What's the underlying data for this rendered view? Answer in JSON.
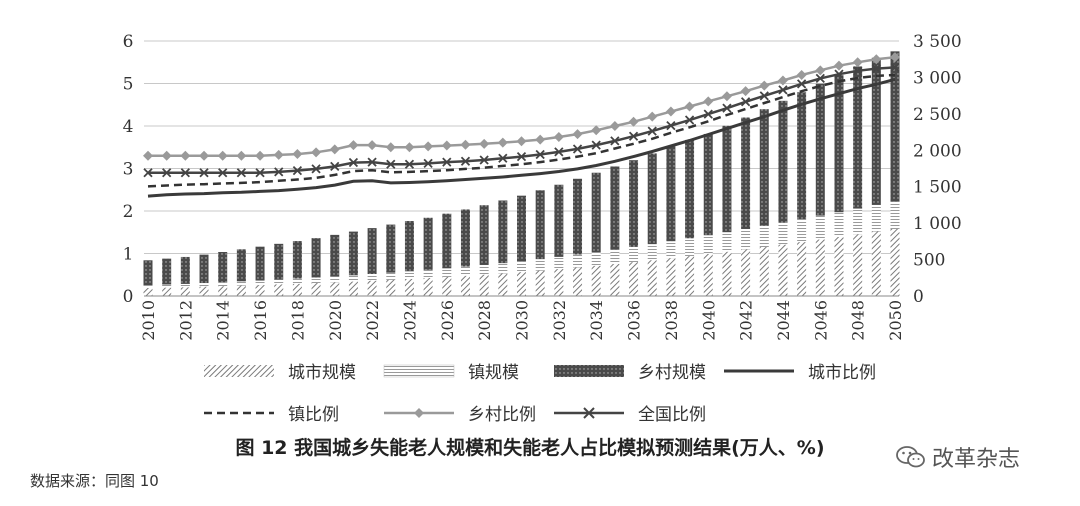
{
  "caption": "图 12  我国城乡失能老人规模和失能老人占比模拟预测结果(万人、%)",
  "source": "数据来源：同图 10",
  "watermark": "改革杂志",
  "colors": {
    "urban_bar": "#8a8a8a",
    "town_bar": "#d8d8d8",
    "rural_bar": "#4a4a4a",
    "urban_line": "#3a3a3a",
    "town_line": "#333333",
    "rural_line": "#9a9a9a",
    "national_line": "#444444"
  },
  "legend": [
    {
      "key": "urban_scale",
      "label": "城市规模"
    },
    {
      "key": "town_scale",
      "label": "镇规模"
    },
    {
      "key": "rural_scale",
      "label": "乡村规模"
    },
    {
      "key": "urban_ratio",
      "label": "城市比例"
    },
    {
      "key": "town_ratio",
      "label": "镇比例"
    },
    {
      "key": "rural_ratio",
      "label": "乡村比例"
    },
    {
      "key": "national_ratio",
      "label": "全国比例"
    }
  ],
  "chart_data": {
    "type": "bar",
    "x": [
      2010,
      2011,
      2012,
      2013,
      2014,
      2015,
      2016,
      2017,
      2018,
      2019,
      2020,
      2021,
      2022,
      2023,
      2024,
      2025,
      2026,
      2027,
      2028,
      2029,
      2030,
      2031,
      2032,
      2033,
      2034,
      2035,
      2036,
      2037,
      2038,
      2039,
      2040,
      2041,
      2042,
      2043,
      2044,
      2045,
      2046,
      2047,
      2048,
      2049,
      2050
    ],
    "x_tick_labels": [
      "2010",
      "2012",
      "2014",
      "2016",
      "2018",
      "2020",
      "2022",
      "2024",
      "2026",
      "2028",
      "2030",
      "2032",
      "2034",
      "2036",
      "2038",
      "2040",
      "2042",
      "2044",
      "2046",
      "2048",
      "2050"
    ],
    "left_axis": {
      "ylim": [
        0,
        6
      ],
      "ticks": [
        "0",
        "1",
        "2",
        "3",
        "4",
        "5",
        "6"
      ]
    },
    "right_axis": {
      "ylim": [
        0,
        3500
      ],
      "ticks": [
        "0",
        "500",
        "1 000",
        "1 500",
        "2 000",
        "2 500",
        "3 000",
        "3 500"
      ]
    },
    "grid": "horizontal",
    "legend_position": "bottom",
    "bar_series": [
      {
        "name": "城市规模",
        "axis": "right",
        "values": [
          110,
          115,
          120,
          128,
          135,
          143,
          150,
          160,
          168,
          178,
          188,
          198,
          210,
          222,
          235,
          248,
          262,
          278,
          293,
          310,
          328,
          348,
          370,
          392,
          415,
          440,
          465,
          492,
          520,
          548,
          578,
          608,
          640,
          672,
          705,
          740,
          775,
          810,
          848,
          885,
          920
        ]
      },
      {
        "name": "镇规模",
        "axis": "right",
        "values": [
          40,
          43,
          46,
          50,
          54,
          58,
          62,
          66,
          71,
          76,
          81,
          86,
          92,
          98,
          104,
          111,
          118,
          125,
          133,
          141,
          149,
          158,
          167,
          177,
          187,
          198,
          209,
          220,
          232,
          244,
          256,
          268,
          280,
          292,
          304,
          316,
          328,
          340,
          352,
          365,
          378
        ]
      },
      {
        "name": "乡村规模",
        "axis": "right",
        "values": [
          340,
          355,
          370,
          390,
          415,
          440,
          465,
          490,
          515,
          540,
          570,
          600,
          630,
          660,
          690,
          715,
          750,
          785,
          820,
          860,
          900,
          945,
          990,
          1040,
          1090,
          1140,
          1190,
          1245,
          1300,
          1350,
          1390,
          1460,
          1530,
          1600,
          1670,
          1740,
          1810,
          1880,
          1950,
          2020,
          2060
        ]
      }
    ],
    "line_series": [
      {
        "name": "城市比例",
        "axis": "left",
        "style": "solid",
        "values": [
          2.35,
          2.38,
          2.4,
          2.41,
          2.43,
          2.44,
          2.46,
          2.48,
          2.51,
          2.55,
          2.61,
          2.7,
          2.71,
          2.66,
          2.67,
          2.69,
          2.71,
          2.74,
          2.77,
          2.8,
          2.84,
          2.88,
          2.93,
          2.99,
          3.07,
          3.17,
          3.28,
          3.4,
          3.53,
          3.66,
          3.8,
          3.94,
          4.08,
          4.22,
          4.37,
          4.51,
          4.64,
          4.76,
          4.88,
          4.98,
          5.1
        ]
      },
      {
        "name": "镇比例",
        "axis": "left",
        "style": "dashed",
        "values": [
          2.58,
          2.6,
          2.62,
          2.63,
          2.65,
          2.66,
          2.68,
          2.71,
          2.74,
          2.78,
          2.85,
          2.94,
          2.96,
          2.91,
          2.92,
          2.94,
          2.96,
          2.99,
          3.02,
          3.06,
          3.1,
          3.15,
          3.21,
          3.28,
          3.36,
          3.47,
          3.58,
          3.7,
          3.84,
          3.97,
          4.11,
          4.26,
          4.4,
          4.54,
          4.68,
          4.82,
          4.94,
          5.05,
          5.13,
          5.18,
          5.2
        ]
      },
      {
        "name": "乡村比例",
        "axis": "left",
        "style": "diamond",
        "values": [
          3.3,
          3.3,
          3.3,
          3.3,
          3.3,
          3.3,
          3.3,
          3.32,
          3.34,
          3.38,
          3.45,
          3.55,
          3.55,
          3.5,
          3.5,
          3.52,
          3.54,
          3.56,
          3.58,
          3.61,
          3.64,
          3.68,
          3.74,
          3.81,
          3.9,
          4.0,
          4.1,
          4.22,
          4.34,
          4.46,
          4.58,
          4.7,
          4.82,
          4.95,
          5.07,
          5.2,
          5.31,
          5.42,
          5.5,
          5.57,
          5.62
        ]
      },
      {
        "name": "全国比例",
        "axis": "left",
        "style": "cross",
        "values": [
          2.9,
          2.9,
          2.9,
          2.9,
          2.9,
          2.9,
          2.9,
          2.92,
          2.95,
          2.99,
          3.05,
          3.14,
          3.15,
          3.1,
          3.1,
          3.12,
          3.15,
          3.17,
          3.2,
          3.24,
          3.28,
          3.33,
          3.39,
          3.46,
          3.55,
          3.65,
          3.76,
          3.88,
          4.01,
          4.14,
          4.28,
          4.42,
          4.57,
          4.71,
          4.85,
          4.99,
          5.12,
          5.22,
          5.3,
          5.35,
          5.38
        ]
      }
    ]
  }
}
